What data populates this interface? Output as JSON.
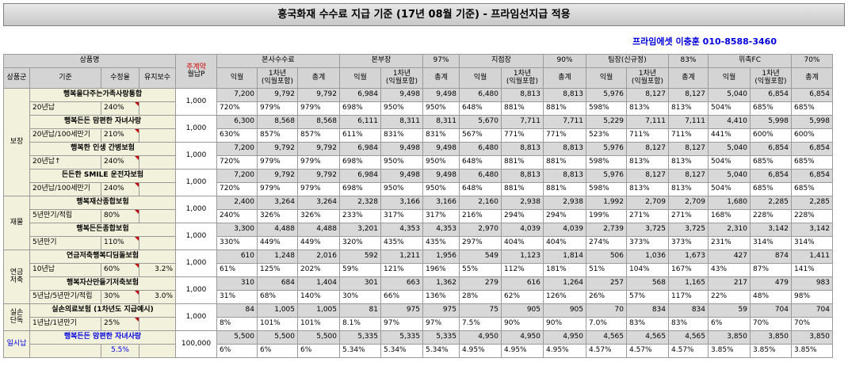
{
  "title": "흥국화재 수수료 지급 기준 (17년 08월 기준) - 프라임선지급 적용",
  "contact": "프라임에셋 이충훈 010-8588-3460",
  "header": {
    "product_name": "상품명",
    "monthly_premium_top": "주계약",
    "monthly_premium_bottom": "월납P",
    "hq": "본사수수료",
    "head": "본부장",
    "head_pct": "97%",
    "branch": "지점장",
    "branch_pct": "90%",
    "team": "팀장(신규정)",
    "team_pct": "83%",
    "fc": "위촉FC",
    "fc_pct": "70%",
    "group": "상품군",
    "criteria": "기준",
    "rate": "수정율",
    "maintenance": "유지보수",
    "next_month": "익월",
    "first_year_top": "1차년",
    "first_year_bottom": "(익월포함)",
    "total": "총계"
  },
  "categories": {
    "protection": "보장",
    "property": "재물",
    "pension_top": "연금",
    "pension_bottom": "저축",
    "loss_top": "실손",
    "loss_bottom": "단독",
    "lump": "일시납"
  },
  "products": [
    {
      "name": "행복을다주는가족사랑통합",
      "basis": "20년납",
      "rate": "240%",
      "maint": "",
      "premium": "1,000",
      "top": [
        "7,200",
        "9,792",
        "9,792",
        "6,984",
        "9,498",
        "9,498",
        "6,480",
        "8,813",
        "8,813",
        "5,976",
        "8,127",
        "8,127",
        "5,040",
        "6,854",
        "6,854"
      ],
      "bottom": [
        "720%",
        "979%",
        "979%",
        "698%",
        "950%",
        "950%",
        "648%",
        "881%",
        "881%",
        "598%",
        "813%",
        "813%",
        "504%",
        "685%",
        "685%"
      ]
    },
    {
      "name": "행복든든 맘편한 자녀사랑",
      "basis": "20년납/100세만기",
      "rate": "210%",
      "maint": "",
      "premium": "1,000",
      "top": [
        "6,300",
        "8,568",
        "8,568",
        "6,111",
        "8,311",
        "8,311",
        "5,670",
        "7,711",
        "7,711",
        "5,229",
        "7,111",
        "7,111",
        "4,410",
        "5,998",
        "5,998"
      ],
      "bottom": [
        "630%",
        "857%",
        "857%",
        "611%",
        "831%",
        "831%",
        "567%",
        "771%",
        "771%",
        "523%",
        "711%",
        "711%",
        "441%",
        "600%",
        "600%"
      ]
    },
    {
      "name": "행복한 인생 간병보험",
      "basis": "20년납↑",
      "rate": "240%",
      "maint": "",
      "premium": "1,000",
      "top": [
        "7,200",
        "9,792",
        "9,792",
        "6,984",
        "9,498",
        "9,498",
        "6,480",
        "8,813",
        "8,813",
        "5,976",
        "8,127",
        "8,127",
        "5,040",
        "6,854",
        "6,854"
      ],
      "bottom": [
        "720%",
        "979%",
        "979%",
        "698%",
        "950%",
        "950%",
        "648%",
        "881%",
        "881%",
        "598%",
        "813%",
        "813%",
        "504%",
        "685%",
        "685%"
      ]
    },
    {
      "name": "든든한 SMILE 운전자보험",
      "basis": "20년납/100세만기",
      "rate": "240%",
      "maint": "",
      "premium": "1,000",
      "top": [
        "7,200",
        "9,792",
        "9,792",
        "6,984",
        "9,498",
        "9,498",
        "6,480",
        "8,813",
        "8,813",
        "5,976",
        "8,127",
        "8,127",
        "5,040",
        "6,854",
        "6,854"
      ],
      "bottom": [
        "720%",
        "979%",
        "979%",
        "698%",
        "950%",
        "950%",
        "648%",
        "881%",
        "881%",
        "598%",
        "813%",
        "813%",
        "504%",
        "685%",
        "685%"
      ]
    },
    {
      "name": "행복재산종합보험",
      "basis": "5년만기/적립",
      "rate": "80%",
      "maint": "",
      "premium": "1,000",
      "top": [
        "2,400",
        "3,264",
        "3,264",
        "2,328",
        "3,166",
        "3,166",
        "2,160",
        "2,938",
        "2,938",
        "1,992",
        "2,709",
        "2,709",
        "1,680",
        "2,285",
        "2,285"
      ],
      "bottom": [
        "240%",
        "326%",
        "326%",
        "233%",
        "317%",
        "317%",
        "216%",
        "294%",
        "294%",
        "199%",
        "271%",
        "271%",
        "168%",
        "228%",
        "228%"
      ]
    },
    {
      "name": "행복든든종합보험",
      "basis": "5년만기",
      "rate": "110%",
      "maint": "",
      "premium": "1,000",
      "top": [
        "3,300",
        "4,488",
        "4,488",
        "3,201",
        "4,353",
        "4,353",
        "2,970",
        "4,039",
        "4,039",
        "2,739",
        "3,725",
        "3,725",
        "2,310",
        "3,142",
        "3,142"
      ],
      "bottom": [
        "330%",
        "449%",
        "449%",
        "320%",
        "435%",
        "435%",
        "297%",
        "404%",
        "404%",
        "274%",
        "373%",
        "373%",
        "231%",
        "314%",
        "314%"
      ]
    },
    {
      "name": "연금저축행복디딤돌보험",
      "basis": "10년납",
      "rate": "60%",
      "maint": "3.2%",
      "premium": "1,000",
      "top": [
        "610",
        "1,248",
        "2,016",
        "592",
        "1,211",
        "1,956",
        "549",
        "1,123",
        "1,814",
        "506",
        "1,036",
        "1,673",
        "427",
        "874",
        "1,411"
      ],
      "bottom": [
        "61%",
        "125%",
        "202%",
        "59%",
        "121%",
        "196%",
        "55%",
        "112%",
        "181%",
        "51%",
        "104%",
        "167%",
        "43%",
        "87%",
        "141%"
      ]
    },
    {
      "name": "행복자산만들기저축보험",
      "basis": "5년납/5년만기/적립",
      "rate": "30%",
      "maint": "3.0%",
      "premium": "1,000",
      "top": [
        "310",
        "684",
        "1,404",
        "301",
        "663",
        "1,362",
        "279",
        "616",
        "1,264",
        "257",
        "568",
        "1,165",
        "217",
        "479",
        "983"
      ],
      "bottom": [
        "31%",
        "68%",
        "140%",
        "30%",
        "66%",
        "136%",
        "28%",
        "62%",
        "126%",
        "26%",
        "57%",
        "117%",
        "22%",
        "48%",
        "98%"
      ]
    },
    {
      "name": "실손의료보험 (1차년도 지급예시)",
      "basis": "1년납/1년만기",
      "rate": "25%",
      "maint": "",
      "premium": "1,000",
      "top": [
        "84",
        "1,005",
        "1,005",
        "81",
        "975",
        "975",
        "75",
        "905",
        "905",
        "70",
        "834",
        "834",
        "59",
        "704",
        "704"
      ],
      "bottom": [
        "8%",
        "101%",
        "101%",
        "8.1%",
        "97%",
        "97%",
        "7.5%",
        "90%",
        "90%",
        "7.0%",
        "83%",
        "83%",
        "6%",
        "70%",
        "70%"
      ]
    },
    {
      "name": "행복든든 맘편한 자녀사랑",
      "basis": "",
      "rate": "5.5%",
      "maint": "",
      "premium": "100,000",
      "top": [
        "5,500",
        "5,500",
        "5,500",
        "5,335",
        "5,335",
        "5,335",
        "4,950",
        "4,950",
        "4,950",
        "4,565",
        "4,565",
        "4,565",
        "3,850",
        "3,850",
        "3,850"
      ],
      "bottom": [
        "6%",
        "6%",
        "6%",
        "5.34%",
        "5.34%",
        "5.34%",
        "4.95%",
        "4.95%",
        "4.95%",
        "4.57%",
        "4.57%",
        "4.57%",
        "3.85%",
        "3.85%",
        "3.85%"
      ]
    }
  ]
}
